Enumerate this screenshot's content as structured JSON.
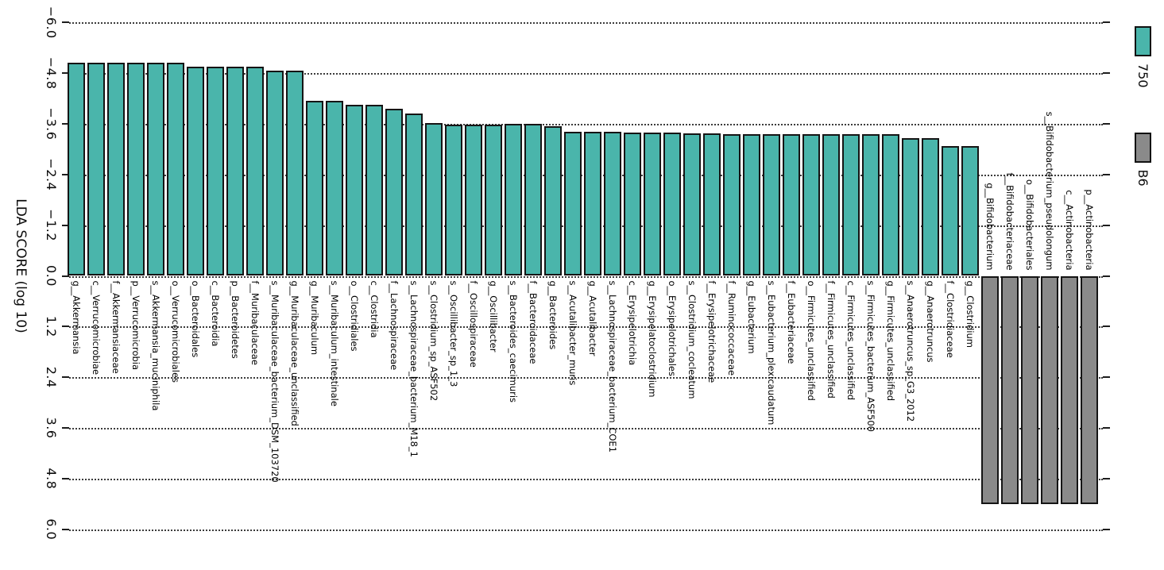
{
  "figure": {
    "background": "#ffffff",
    "axis": {
      "title": "LDA SCORE (log 10)",
      "ticks": [
        -6.0,
        -4.8,
        -3.6,
        -2.4,
        -1.2,
        0.0,
        1.2,
        2.4,
        3.6,
        4.8,
        6.0
      ],
      "tick_labels": [
        "−6.0",
        "−4.8",
        "−3.6",
        "−2.4",
        "−1.2",
        "0.0",
        "1.2",
        "2.4",
        "3.6",
        "4.8",
        "6.0"
      ],
      "min": -6.0,
      "max": 6.0
    },
    "legend": {
      "items": [
        {
          "label": "750",
          "color": "#4ab5ab"
        },
        {
          "label": "B6",
          "color": "#8a8a8a"
        }
      ]
    }
  },
  "chart_data": {
    "type": "bar",
    "title": "",
    "xlabel": "LDA SCORE (log 10)",
    "ylabel": "",
    "xlim": [
      -6.0,
      6.0
    ],
    "grid": "dotted",
    "orientation": "horizontal bars rotated 90deg clockwise (negative class points up, positive class points down)",
    "legend_position": "top-right of rotated figure",
    "classes": [
      {
        "name": "750",
        "color": "#4ab5ab",
        "direction": "negative"
      },
      {
        "name": "B6",
        "color": "#8a8a8a",
        "direction": "positive"
      }
    ],
    "bars": [
      {
        "taxon": "g__Akkermansia",
        "lda": -5.05,
        "class": "750"
      },
      {
        "taxon": "c__Verrucomicrobiae",
        "lda": -5.05,
        "class": "750"
      },
      {
        "taxon": "f__Akkermansiaceae",
        "lda": -5.05,
        "class": "750"
      },
      {
        "taxon": "p__Verrucomicrobia",
        "lda": -5.05,
        "class": "750"
      },
      {
        "taxon": "s__Akkermansia_muciniphila",
        "lda": -5.05,
        "class": "750"
      },
      {
        "taxon": "o__Verrucomicrobiales",
        "lda": -5.05,
        "class": "750"
      },
      {
        "taxon": "o__Bacteroidales",
        "lda": -4.95,
        "class": "750"
      },
      {
        "taxon": "c__Bacteroidia",
        "lda": -4.95,
        "class": "750"
      },
      {
        "taxon": "p__Bacteroidetes",
        "lda": -4.95,
        "class": "750"
      },
      {
        "taxon": "f__Muribaculaceae",
        "lda": -4.95,
        "class": "750"
      },
      {
        "taxon": "s__Muribaculaceae_bacterium_DSM_103720",
        "lda": -4.85,
        "class": "750"
      },
      {
        "taxon": "g__Muribaculaceae_unclassified",
        "lda": -4.85,
        "class": "750"
      },
      {
        "taxon": "g__Muribaculum",
        "lda": -4.15,
        "class": "750"
      },
      {
        "taxon": "s__Muribaculum_intestinale",
        "lda": -4.15,
        "class": "750"
      },
      {
        "taxon": "o__Clostridiales",
        "lda": -4.05,
        "class": "750"
      },
      {
        "taxon": "c__Clostridia",
        "lda": -4.05,
        "class": "750"
      },
      {
        "taxon": "f__Lachnospiraceae",
        "lda": -3.95,
        "class": "750"
      },
      {
        "taxon": "s__Lachnospiraceae_bacterium_M18_1",
        "lda": -3.85,
        "class": "750"
      },
      {
        "taxon": "s__Clostridium_sp_ASF502",
        "lda": -3.62,
        "class": "750"
      },
      {
        "taxon": "s__Oscillibacter_sp_1_3",
        "lda": -3.58,
        "class": "750"
      },
      {
        "taxon": "f__Oscillospiraceae",
        "lda": -3.58,
        "class": "750"
      },
      {
        "taxon": "g__Oscillibacter",
        "lda": -3.58,
        "class": "750"
      },
      {
        "taxon": "s__Bacteroides_caecimuris",
        "lda": -3.6,
        "class": "750"
      },
      {
        "taxon": "f__Bacteroidaceae",
        "lda": -3.6,
        "class": "750"
      },
      {
        "taxon": "g__Bacteroides",
        "lda": -3.55,
        "class": "750"
      },
      {
        "taxon": "s__Acutalibacter_muris",
        "lda": -3.42,
        "class": "750"
      },
      {
        "taxon": "g__Acutalibacter",
        "lda": -3.42,
        "class": "750"
      },
      {
        "taxon": "s__Lachnospiraceae_bacterium_COE1",
        "lda": -3.42,
        "class": "750"
      },
      {
        "taxon": "c__Erysipelotrichia",
        "lda": -3.4,
        "class": "750"
      },
      {
        "taxon": "g__Erysipelatoclostridium",
        "lda": -3.4,
        "class": "750"
      },
      {
        "taxon": "o__Erysipelotrichales",
        "lda": -3.4,
        "class": "750"
      },
      {
        "taxon": "s__Clostridium_cocleatum",
        "lda": -3.38,
        "class": "750"
      },
      {
        "taxon": "f__Erysipelotrichaceae",
        "lda": -3.38,
        "class": "750"
      },
      {
        "taxon": "f__Ruminococcaceae",
        "lda": -3.36,
        "class": "750"
      },
      {
        "taxon": "g__Eubacterium",
        "lda": -3.36,
        "class": "750"
      },
      {
        "taxon": "s__Eubacterium_plexicaudatum",
        "lda": -3.35,
        "class": "750"
      },
      {
        "taxon": "f__Eubacteriaceae",
        "lda": -3.35,
        "class": "750"
      },
      {
        "taxon": "o__Firmicutes_unclassified",
        "lda": -3.35,
        "class": "750"
      },
      {
        "taxon": "f__Firmicutes_unclassified",
        "lda": -3.35,
        "class": "750"
      },
      {
        "taxon": "c__Firmicutes_unclassified",
        "lda": -3.35,
        "class": "750"
      },
      {
        "taxon": "s__Firmicutes_bacterium_ASF500",
        "lda": -3.35,
        "class": "750"
      },
      {
        "taxon": "g__Firmicutes_unclassified",
        "lda": -3.35,
        "class": "750"
      },
      {
        "taxon": "s__Anaerotruncus_sp_G3_2012",
        "lda": -3.27,
        "class": "750"
      },
      {
        "taxon": "g__Anaerotruncus",
        "lda": -3.27,
        "class": "750"
      },
      {
        "taxon": "f__Clostridiaceae",
        "lda": -3.08,
        "class": "750"
      },
      {
        "taxon": "g__Clostridium",
        "lda": -3.08,
        "class": "750"
      },
      {
        "taxon": "g__Bifidobacterium",
        "lda": 5.4,
        "class": "B6"
      },
      {
        "taxon": "f__Bifidobacteriaceae",
        "lda": 5.4,
        "class": "B6"
      },
      {
        "taxon": "o__Bifidobacteriales",
        "lda": 5.4,
        "class": "B6"
      },
      {
        "taxon": "s__Bifidobacterium_pseudolongum",
        "lda": 5.4,
        "class": "B6"
      },
      {
        "taxon": "c__Actinobacteria",
        "lda": 5.4,
        "class": "B6"
      },
      {
        "taxon": "p__Actinobacteria",
        "lda": 5.4,
        "class": "B6"
      }
    ]
  }
}
